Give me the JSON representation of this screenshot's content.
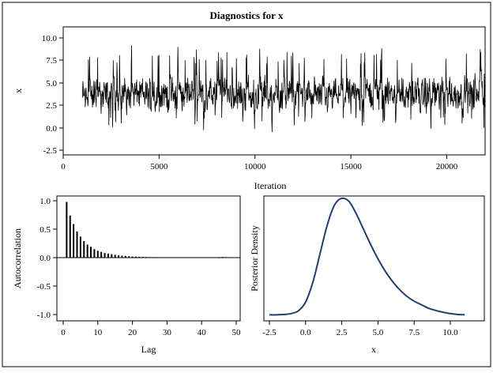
{
  "title": "Diagnostics for x",
  "colors": {
    "trace": "#000000",
    "acf": "#000000",
    "density": "#1f3f6e"
  },
  "chart_data": [
    {
      "type": "line",
      "name": "trace",
      "xlabel": "Iteration",
      "ylabel": "x",
      "xlim": [
        0,
        22000
      ],
      "ylim": [
        -2.5,
        11
      ],
      "x_ticks": [
        "0",
        "5000",
        "10000",
        "15000",
        "20000"
      ],
      "y_ticks": [
        "-2.5",
        "0.0",
        "2.5",
        "5.0",
        "7.5",
        "10.0"
      ],
      "x_start": 1000,
      "x_end": 22000,
      "trace_summary": {
        "center": 3.0,
        "typical_low": 0.5,
        "typical_high": 7.0,
        "min": -1.7,
        "max": 10.6
      }
    },
    {
      "type": "bar",
      "name": "autocorrelation",
      "xlabel": "Lag",
      "ylabel": "Autocorrelation",
      "xlim": [
        0,
        50
      ],
      "ylim": [
        -1,
        1
      ],
      "x_ticks": [
        "0",
        "10",
        "20",
        "30",
        "40",
        "50"
      ],
      "y_ticks": [
        "-1.0",
        "-0.5",
        "0.0",
        "0.5",
        "1.0"
      ],
      "lags": [
        1,
        2,
        3,
        4,
        5,
        6,
        7,
        8,
        9,
        10,
        11,
        12,
        13,
        14,
        15,
        16,
        17,
        18,
        19,
        20,
        21,
        22,
        23,
        24,
        25,
        26,
        27,
        28,
        29,
        30,
        31,
        32,
        33,
        34,
        35,
        36,
        37,
        38,
        39,
        40,
        41,
        42,
        43,
        44,
        45,
        46,
        47,
        48,
        49,
        50
      ],
      "values": [
        0.98,
        0.74,
        0.59,
        0.46,
        0.37,
        0.29,
        0.23,
        0.19,
        0.15,
        0.12,
        0.1,
        0.08,
        0.07,
        0.06,
        0.05,
        0.04,
        0.035,
        0.03,
        0.025,
        0.02,
        0.018,
        0.015,
        0.013,
        0.012,
        0.01,
        0.009,
        0.008,
        0.008,
        0.007,
        0.006,
        0.005,
        0.005,
        0.004,
        0.004,
        0.003,
        0.003,
        0.003,
        0.002,
        0.002,
        0.002,
        0.002,
        0.002,
        0.002,
        0.002,
        0.01,
        0.012,
        0.01,
        0.008,
        0.004,
        0.002
      ]
    },
    {
      "type": "line",
      "name": "posterior-density",
      "xlabel": "x",
      "ylabel": "Posterior Density",
      "xlim": [
        -2.7,
        11.3
      ],
      "x_ticks": [
        "-2.5",
        "0.0",
        "2.5",
        "5.0",
        "7.5",
        "10.0"
      ],
      "x": [
        -2.5,
        -2.0,
        -1.5,
        -1.0,
        -0.5,
        0.0,
        0.5,
        1.0,
        1.5,
        2.0,
        2.5,
        3.0,
        3.5,
        4.0,
        4.5,
        5.0,
        5.5,
        6.0,
        6.5,
        7.0,
        7.5,
        8.0,
        8.5,
        9.0,
        9.5,
        10.0,
        10.5,
        11.0
      ],
      "y": [
        0.001,
        0.001,
        0.002,
        0.004,
        0.01,
        0.03,
        0.075,
        0.14,
        0.205,
        0.25,
        0.265,
        0.258,
        0.23,
        0.195,
        0.16,
        0.128,
        0.1,
        0.077,
        0.058,
        0.043,
        0.032,
        0.024,
        0.016,
        0.011,
        0.007,
        0.004,
        0.002,
        0.001
      ]
    }
  ]
}
